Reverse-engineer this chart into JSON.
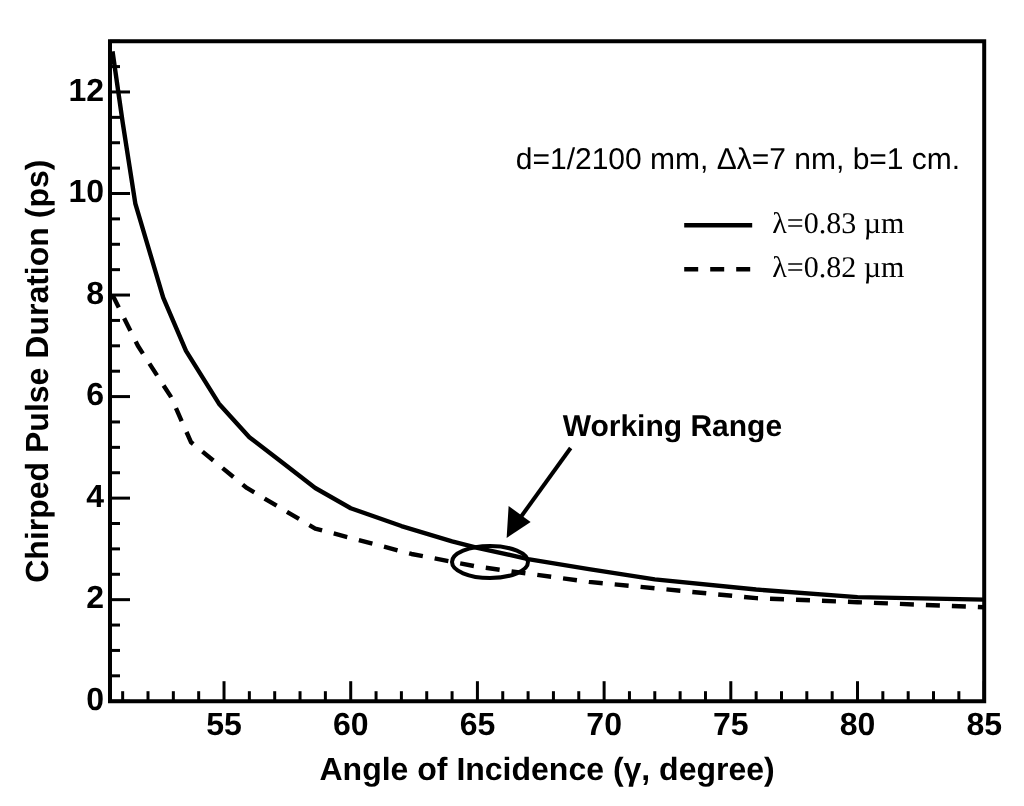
{
  "chart_data": {
    "type": "line",
    "xlabel": "Angle of Incidence (γ, degree)",
    "ylabel": "Chirped Pulse Duration (ps)",
    "xlim": [
      50.5,
      85
    ],
    "ylim": [
      0,
      13
    ],
    "xticks": [
      55,
      60,
      65,
      70,
      75,
      80,
      85
    ],
    "yticks": [
      0,
      2,
      4,
      6,
      8,
      10,
      12
    ],
    "grid": false,
    "legend": "top right",
    "marker": "none",
    "annotations": [
      "d=1/2100 mm, Δλ=7 nm, b=1 cm.",
      "Working Range"
    ],
    "series": [
      {
        "name": "λ=0.83 µm",
        "color": "#000000",
        "line_style": "solid",
        "x": [
          50.6,
          51,
          51.5,
          52.6,
          53.5,
          54.8,
          56,
          57.3,
          58.6,
          60,
          62,
          64,
          65,
          67,
          69.4,
          72,
          76,
          80,
          85
        ],
        "values": [
          12.8,
          11.4,
          9.8,
          7.95,
          6.9,
          5.86,
          5.2,
          4.7,
          4.2,
          3.8,
          3.45,
          3.15,
          3.02,
          2.8,
          2.6,
          2.4,
          2.2,
          2.05,
          2.0
        ]
      },
      {
        "name": "λ=0.82 µm",
        "color": "#000000",
        "line_style": "dashed",
        "x": [
          50.6,
          51.6,
          52.9,
          53.7,
          55.9,
          58.6,
          62.4,
          65,
          69.4,
          76,
          80,
          85
        ],
        "values": [
          8.0,
          7.0,
          6.0,
          5.1,
          4.2,
          3.4,
          2.9,
          2.65,
          2.35,
          2.03,
          1.95,
          1.85
        ]
      }
    ]
  }
}
